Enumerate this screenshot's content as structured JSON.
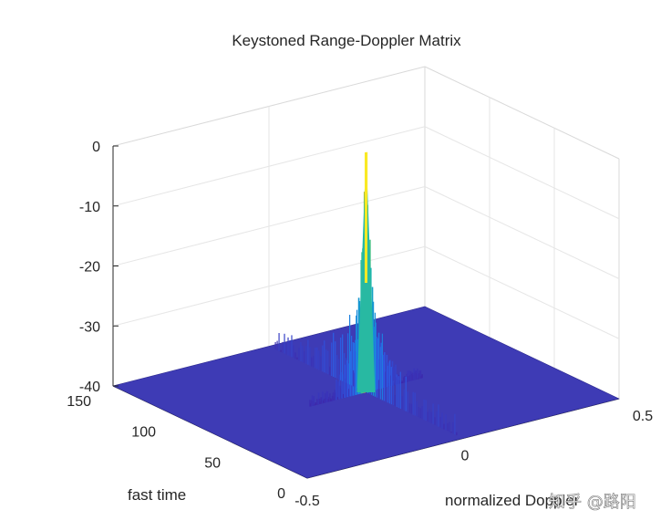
{
  "chart_data": {
    "type": "surface",
    "title": "Keystoned Range-Doppler Matrix",
    "xlabel": "normalized Doppler",
    "ylabel": "fast time",
    "zlabel": "",
    "xlim": [
      -0.5,
      0.5
    ],
    "ylim": [
      0,
      150
    ],
    "zlim": [
      -40,
      0
    ],
    "x_ticks": [
      "-0.5",
      "0",
      "0.5"
    ],
    "y_ticks": [
      "0",
      "50",
      "100",
      "150"
    ],
    "z_ticks": [
      "0",
      "-10",
      "-20",
      "-30",
      "-40"
    ],
    "grid": true,
    "colormap": "parula",
    "floor_color": "#3e3bb5",
    "peak": {
      "normalized_doppler": 0.0,
      "fast_time": 75,
      "value_db": 0
    }
  },
  "watermark": "知乎 @路阳"
}
